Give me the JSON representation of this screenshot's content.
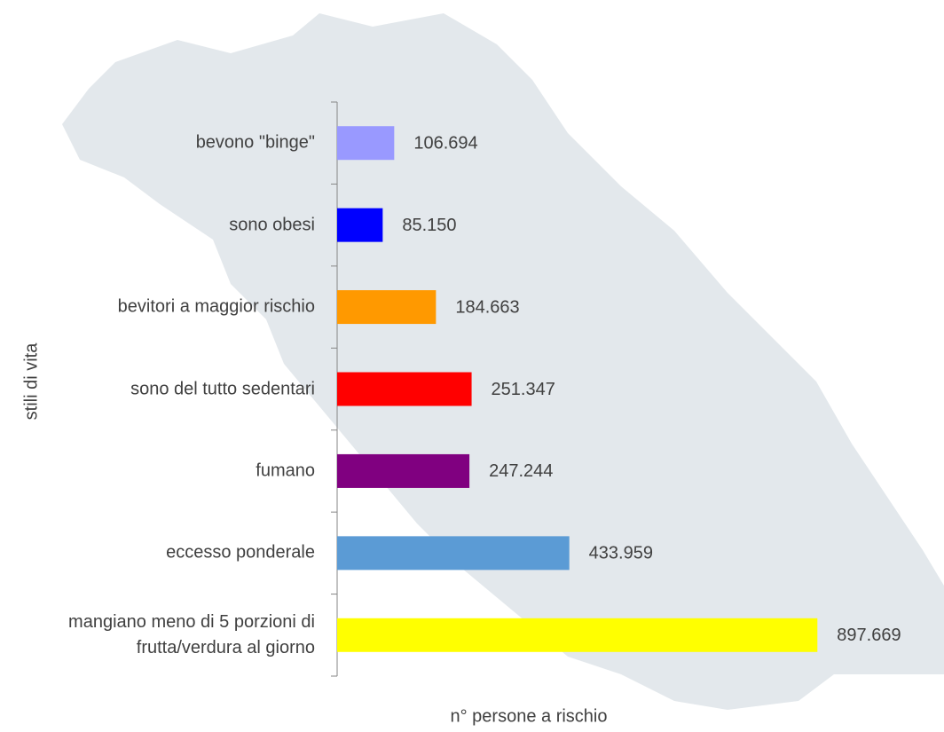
{
  "chart_data": {
    "type": "barh",
    "xlabel": "n° persone a rischio",
    "ylabel": "stili di vita",
    "categories": [
      "bevono \"binge\"",
      "sono obesi",
      "bevitori a maggior rischio",
      "sono del tutto sedentari",
      "fumano",
      "eccesso ponderale",
      "mangiano meno di 5 porzioni di\nfrutta/verdura al giorno"
    ],
    "values": [
      106694,
      85150,
      184663,
      251347,
      247244,
      433959,
      897669
    ],
    "value_labels": [
      "106.694",
      "85.150",
      "184.663",
      "251.347",
      "247.244",
      "433.959",
      "897.669"
    ],
    "colors": [
      "#9999ff",
      "#0000ff",
      "#ff9900",
      "#ff0000",
      "#800080",
      "#5b9bd5",
      "#ffff00"
    ],
    "xlim": [
      0,
      1000000
    ]
  }
}
